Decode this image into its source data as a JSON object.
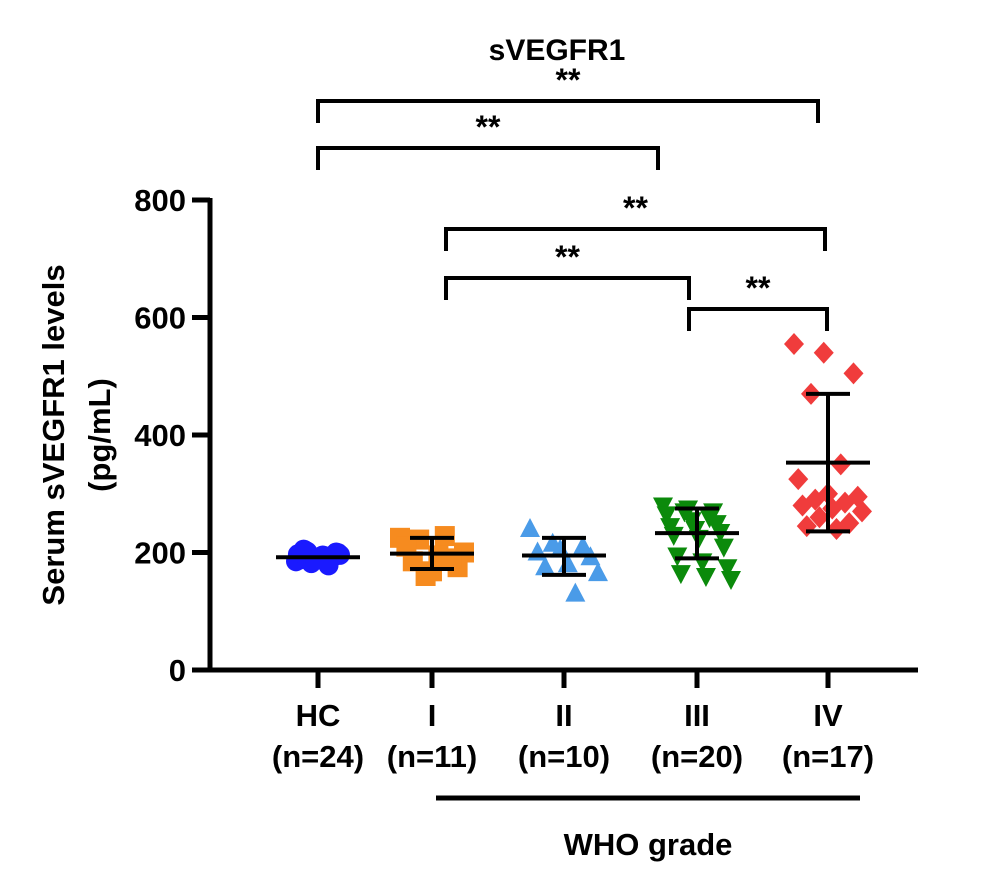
{
  "chart_data": {
    "type": "scatter",
    "title": "sVEGFR1",
    "ylabel_line1": "Serum sVEGFR1 levels",
    "ylabel_line2": "(pg/mL)",
    "xlabel": "WHO grade",
    "ylim": [
      0,
      800
    ],
    "yticks": [
      0,
      200,
      400,
      600,
      800
    ],
    "groups": [
      {
        "name": "HC",
        "n_label": "(n=24)",
        "color": "#1a1aff",
        "marker": "circle",
        "mean": 192,
        "sd_low": 192,
        "sd_high": 192,
        "values": [
          185,
          190,
          195,
          200,
          205,
          188,
          193,
          197,
          182,
          186,
          199,
          203,
          190,
          195,
          188,
          192,
          184,
          196,
          201,
          189,
          194,
          198,
          187,
          178
        ]
      },
      {
        "name": "I",
        "n_label": "(n=11)",
        "color": "#f68b1f",
        "marker": "square",
        "mean": 198,
        "sd_low": 172,
        "sd_high": 225,
        "values": [
          225,
          228,
          222,
          200,
          195,
          185,
          175,
          168,
          210,
          190,
          160
        ]
      },
      {
        "name": "II",
        "n_label": "(n=10)",
        "color": "#4a9be8",
        "marker": "triangle-up",
        "mean": 195,
        "sd_low": 162,
        "sd_high": 225,
        "values": [
          240,
          210,
          205,
          200,
          192,
          180,
          175,
          165,
          130,
          215
        ]
      },
      {
        "name": "III",
        "n_label": "(n=20)",
        "color": "#0b8a0b",
        "marker": "triangle-down",
        "mean": 233,
        "sd_low": 190,
        "sd_high": 275,
        "values": [
          280,
          275,
          270,
          265,
          255,
          250,
          245,
          240,
          235,
          230,
          225,
          210,
          195,
          185,
          175,
          165,
          160,
          155,
          270,
          260
        ]
      },
      {
        "name": "IV",
        "n_label": "(n=17)",
        "color": "#f03c3c",
        "marker": "diamond",
        "mean": 353,
        "sd_low": 236,
        "sd_high": 470,
        "values": [
          555,
          540,
          505,
          470,
          350,
          325,
          300,
          295,
          290,
          285,
          280,
          275,
          270,
          260,
          250,
          245,
          240
        ]
      }
    ],
    "significance": [
      {
        "from": 0,
        "to": 4,
        "label": "**"
      },
      {
        "from": 0,
        "to": 3,
        "label": "**"
      },
      {
        "from": 1,
        "to": 4,
        "label": "**"
      },
      {
        "from": 1,
        "to": 3,
        "label": "**"
      },
      {
        "from": 3,
        "to": 4,
        "label": "**"
      }
    ]
  }
}
